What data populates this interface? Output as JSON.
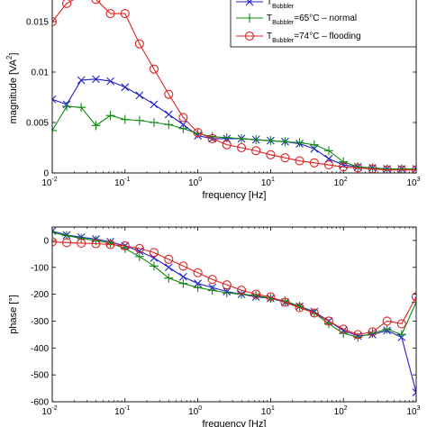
{
  "chart_data": [
    {
      "type": "line",
      "xscale": "log",
      "xlabel": "frequency [Hz]",
      "ylabel_main": "magnitude [VA",
      "ylabel_sup": "2",
      "ylabel_end": "]",
      "xlim": [
        0.01,
        1000
      ],
      "ylim": [
        0,
        0.0175
      ],
      "yticks": [
        "0",
        "0.005",
        "0.01",
        "0.015"
      ],
      "ytick_values": [
        0,
        0.005,
        0.01,
        0.015
      ],
      "xticks": [
        0.01,
        0.1,
        1,
        10,
        100,
        1000
      ],
      "xtick_base": "10",
      "xtick_exps": [
        "-2",
        "-1",
        "0",
        "1",
        "2",
        "3"
      ],
      "legend": [
        {
          "main": "T",
          "sub": "Bubbler",
          "rest": "",
          "color": "#2222cc",
          "marker": "x"
        },
        {
          "main": "T",
          "sub": "Bubbler",
          "rest": "=65°C – normal",
          "color": "#118811",
          "marker": "plus"
        },
        {
          "main": "T",
          "sub": "Bubbler",
          "rest": "=74°C – flooding",
          "color": "#dd2222",
          "marker": "circle"
        }
      ],
      "series": [
        {
          "color": "#2222cc",
          "marker": "x",
          "x": [
            0.01,
            0.0158,
            0.025,
            0.0398,
            0.063,
            0.1,
            0.158,
            0.25,
            0.398,
            0.63,
            1,
            1.58,
            2.5,
            3.98,
            6.3,
            10,
            15.8,
            25,
            39.8,
            63,
            100,
            158,
            251,
            398,
            631,
            1000
          ],
          "y": [
            0.0073,
            0.0068,
            0.0092,
            0.0093,
            0.0091,
            0.0085,
            0.0077,
            0.0068,
            0.0058,
            0.0048,
            0.0037,
            0.0034,
            0.0034,
            0.0034,
            0.0033,
            0.0032,
            0.0031,
            0.0029,
            0.0024,
            0.0014,
            0.0008,
            0.0006,
            0.0005,
            0.0004,
            0.0004,
            0.0004
          ]
        },
        {
          "color": "#118811",
          "marker": "plus",
          "x": [
            0.01,
            0.0158,
            0.025,
            0.0398,
            0.063,
            0.1,
            0.158,
            0.25,
            0.398,
            0.63,
            1,
            1.58,
            2.5,
            3.98,
            6.3,
            10,
            15.8,
            25,
            39.8,
            63,
            100,
            158,
            251,
            398,
            631,
            1000
          ],
          "y": [
            0.0042,
            0.0066,
            0.0065,
            0.0047,
            0.0057,
            0.0053,
            0.0052,
            0.005,
            0.0048,
            0.0044,
            0.0039,
            0.0036,
            0.0035,
            0.0034,
            0.0033,
            0.0032,
            0.0031,
            0.003,
            0.0028,
            0.0022,
            0.0011,
            0.0006,
            0.0005,
            0.0004,
            0.0004,
            0.0004
          ]
        },
        {
          "color": "#dd2222",
          "marker": "circle",
          "x": [
            0.01,
            0.0158,
            0.025,
            0.0398,
            0.063,
            0.1,
            0.158,
            0.25,
            0.398,
            0.63,
            1,
            1.58,
            2.5,
            3.98,
            6.3,
            10,
            15.8,
            25,
            39.8,
            63,
            100,
            158,
            251,
            398,
            631,
            1000
          ],
          "y": [
            0.015,
            0.0168,
            0.0176,
            0.0172,
            0.0158,
            0.0158,
            0.0128,
            0.0103,
            0.0078,
            0.0055,
            0.004,
            0.0034,
            0.0028,
            0.0025,
            0.0022,
            0.0018,
            0.0015,
            0.0012,
            0.001,
            0.0008,
            0.0006,
            0.0005,
            0.0004,
            0.0003,
            0.0003,
            0.0003
          ]
        }
      ]
    },
    {
      "type": "line",
      "xscale": "log",
      "xlabel": "frequency [Hz]",
      "ylabel": "phase [°]",
      "xlim": [
        0.01,
        1000
      ],
      "ylim": [
        -600,
        50
      ],
      "yticks": [
        "0",
        "-100",
        "-200",
        "-300",
        "-400",
        "-500",
        "-600"
      ],
      "ytick_values": [
        0,
        -100,
        -200,
        -300,
        -400,
        -500,
        -600
      ],
      "xticks": [
        0.01,
        0.1,
        1,
        10,
        100,
        1000
      ],
      "xtick_base": "10",
      "xtick_exps": [
        "-2",
        "-1",
        "0",
        "1",
        "2",
        "3"
      ],
      "series": [
        {
          "color": "#2222cc",
          "marker": "x",
          "x": [
            0.01,
            0.0158,
            0.025,
            0.0398,
            0.063,
            0.1,
            0.158,
            0.25,
            0.398,
            0.63,
            1,
            1.58,
            2.5,
            3.98,
            6.3,
            10,
            15.8,
            25,
            39.8,
            63,
            100,
            158,
            251,
            398,
            631,
            1000
          ],
          "y": [
            35,
            20,
            12,
            5,
            -5,
            -20,
            -40,
            -65,
            -100,
            -135,
            -160,
            -175,
            -190,
            -200,
            -210,
            -215,
            -230,
            -245,
            -265,
            -300,
            -335,
            -355,
            -350,
            -335,
            -360,
            -565
          ]
        },
        {
          "color": "#118811",
          "marker": "plus",
          "x": [
            0.01,
            0.0158,
            0.025,
            0.0398,
            0.063,
            0.1,
            0.158,
            0.25,
            0.398,
            0.63,
            1,
            1.58,
            2.5,
            3.98,
            6.3,
            10,
            15.8,
            25,
            39.8,
            63,
            100,
            158,
            251,
            398,
            631,
            1000
          ],
          "y": [
            30,
            18,
            8,
            0,
            -10,
            -30,
            -60,
            -95,
            -140,
            -160,
            -175,
            -185,
            -195,
            -200,
            -205,
            -215,
            -225,
            -245,
            -270,
            -310,
            -345,
            -360,
            -345,
            -330,
            -350,
            -230
          ]
        },
        {
          "color": "#dd2222",
          "marker": "circle",
          "x": [
            0.01,
            0.0158,
            0.025,
            0.0398,
            0.063,
            0.1,
            0.158,
            0.25,
            0.398,
            0.63,
            1,
            1.58,
            2.5,
            3.98,
            6.3,
            10,
            15.8,
            25,
            39.8,
            63,
            100,
            158,
            251,
            398,
            631,
            1000
          ],
          "y": [
            -5,
            -8,
            -10,
            -12,
            -15,
            -20,
            -30,
            -45,
            -70,
            -95,
            -120,
            -145,
            -165,
            -185,
            -200,
            -210,
            -230,
            -250,
            -270,
            -300,
            -330,
            -350,
            -340,
            -300,
            -310,
            -210
          ]
        }
      ]
    }
  ]
}
